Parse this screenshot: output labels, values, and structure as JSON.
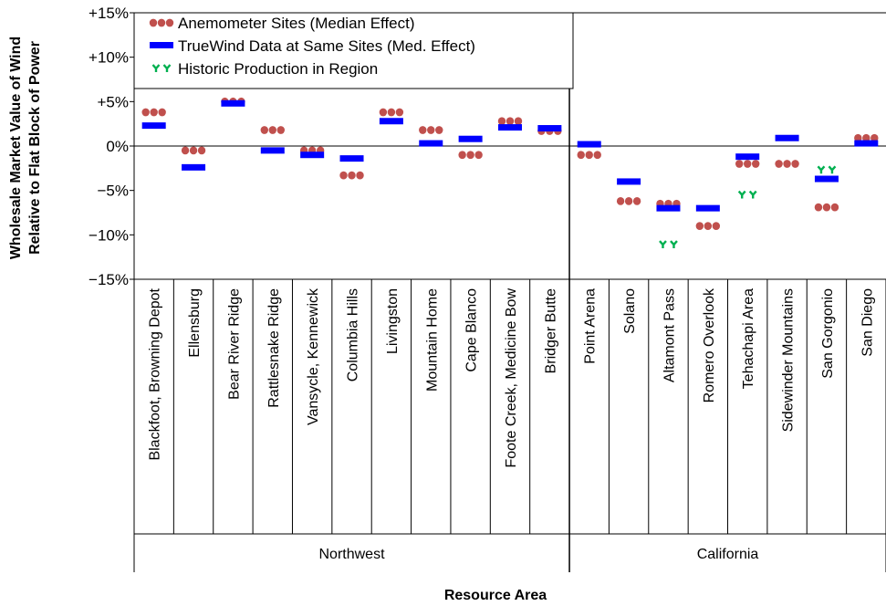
{
  "chart_data": {
    "type": "scatter",
    "xlabel": "Resource Area",
    "ylabel_line1": "Wholesale Market Value of Wind",
    "ylabel_line2": "Relative to Flat Block of Power",
    "ylim": [
      -15,
      15
    ],
    "yticks": [
      {
        "value": 15,
        "label": "+15%"
      },
      {
        "value": 10,
        "label": "+10%"
      },
      {
        "value": 5,
        "label": "+5%"
      },
      {
        "value": 0,
        "label": "0%"
      },
      {
        "value": -5,
        "label": "−5%"
      },
      {
        "value": -10,
        "label": "−10%"
      },
      {
        "value": -15,
        "label": "−15%"
      }
    ],
    "grid": false,
    "legend_position": "top-left",
    "groups": [
      {
        "name": "Northwest",
        "start": 0,
        "count": 11
      },
      {
        "name": "California",
        "start": 11,
        "count": 8
      }
    ],
    "categories": [
      "Blackfoot, Browning Depot",
      "Ellensburg",
      "Bear River Ridge",
      "Rattlesnake Ridge",
      "Vansycle, Kennewick",
      "Columbia Hills",
      "Livingston",
      "Mountain Home",
      "Cape Blanco",
      "Foote Creek, Medicine Bow",
      "Bridger Butte",
      "Point Arena",
      "Solano",
      "Altamont Pass",
      "Romero Overlook",
      "Tehachapi Area",
      "Sidewinder Mountains",
      "San Gorgonio",
      "San Diego"
    ],
    "series": [
      {
        "name": "Anemometer Sites (Median Effect)",
        "marker": "dots",
        "color": "#c0504d",
        "values": [
          3.8,
          -0.5,
          5.0,
          1.8,
          -0.5,
          -3.3,
          3.8,
          1.8,
          -1.0,
          2.8,
          1.7,
          -1.0,
          -6.2,
          -6.5,
          -9.0,
          -2.0,
          -2.0,
          -6.9,
          0.9
        ]
      },
      {
        "name": "TrueWind Data at Same Sites (Med. Effect)",
        "marker": "bar",
        "color": "#0000ff",
        "values": [
          2.3,
          -2.4,
          4.8,
          -0.5,
          -1.0,
          -1.4,
          2.8,
          0.3,
          0.8,
          2.1,
          2.0,
          0.2,
          -4.0,
          -7.0,
          -7.0,
          -1.2,
          0.9,
          -3.7,
          0.3
        ]
      },
      {
        "name": "Historic Production in Region",
        "marker": "triangles",
        "color": "#00b050",
        "values": [
          null,
          null,
          null,
          null,
          null,
          null,
          null,
          null,
          null,
          null,
          null,
          null,
          null,
          -11.1,
          null,
          -5.5,
          null,
          -2.7,
          null
        ]
      }
    ]
  }
}
